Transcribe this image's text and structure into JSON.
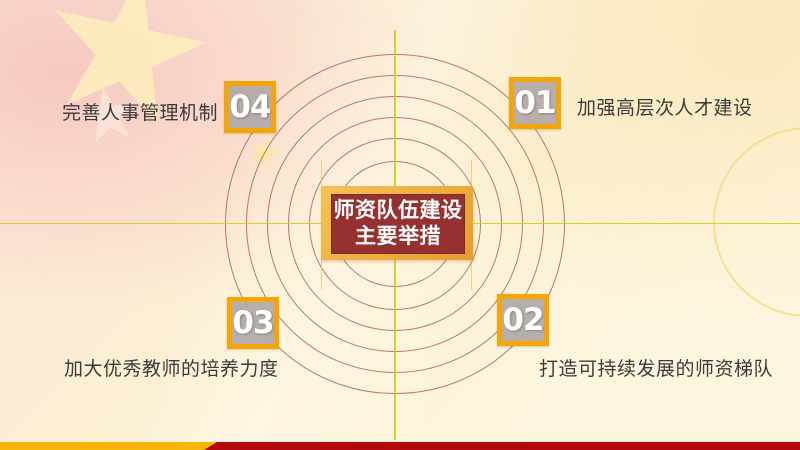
{
  "center": {
    "line1": "师资队伍建设",
    "line2": "主要举措"
  },
  "items": [
    {
      "number": "01",
      "label": "加强高层次人才建设",
      "position": "top-right"
    },
    {
      "number": "02",
      "label": "打造可持续发展的师资梯队",
      "position": "bottom-right"
    },
    {
      "number": "03",
      "label": "加大优秀教师的培养力度",
      "position": "bottom-left"
    },
    {
      "number": "04",
      "label": "完善人事管理机制",
      "position": "top-left"
    }
  ],
  "colors": {
    "accent_gold": "#F2A60A",
    "center_maroon": "#953231",
    "frame_gold": "#E8A93C",
    "circle_stroke": "#9E4440",
    "crosshair_yellow": "#DBC828",
    "number_box_fill": "#B2A8A8",
    "label_text": "#3B3B3B",
    "bar_gold": "#F7B50C",
    "bar_red": "#B5080D"
  }
}
